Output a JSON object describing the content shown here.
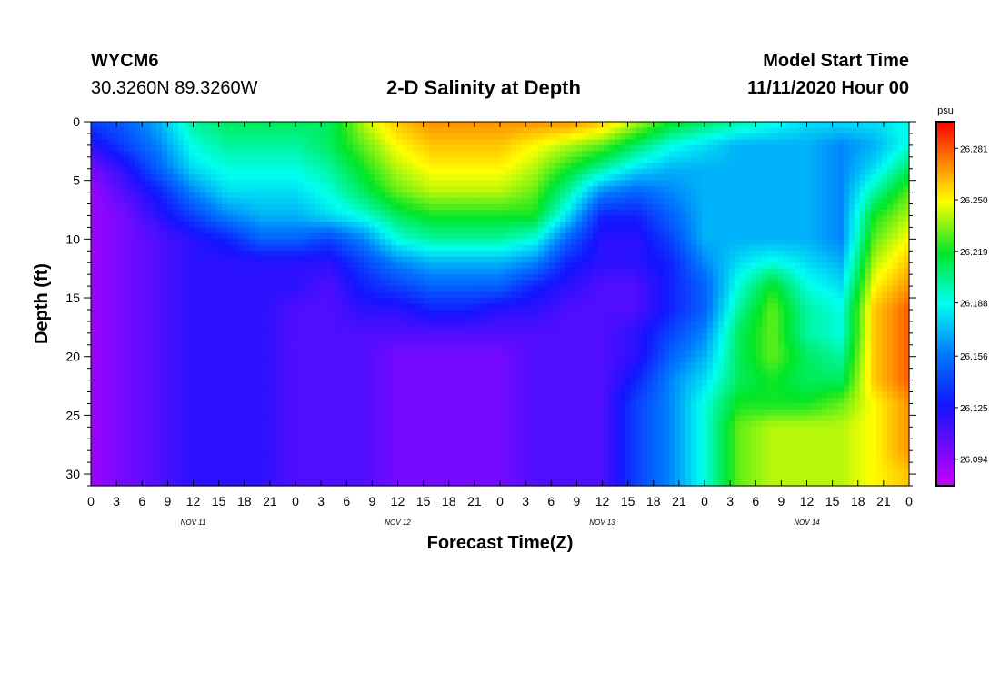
{
  "header": {
    "station_id": "WYCM6",
    "coords": "30.3260N 89.3260W",
    "title": "2-D Salinity at Depth",
    "start_label": "Model Start Time",
    "start_value": "11/11/2020 Hour 00"
  },
  "chart_data": {
    "type": "heatmap",
    "title": "2-D Salinity at Depth",
    "xlabel": "Forecast Time(Z)",
    "ylabel": "Depth (ft)",
    "x_hours_range": [
      0,
      96
    ],
    "x_tick_step_hours": 3,
    "x_tick_labels": [
      "0",
      "3",
      "6",
      "9",
      "12",
      "15",
      "18",
      "21",
      "0",
      "3",
      "6",
      "9",
      "12",
      "15",
      "18",
      "21",
      "0",
      "3",
      "6",
      "9",
      "12",
      "15",
      "18",
      "21",
      "0",
      "3",
      "6",
      "9",
      "12",
      "15",
      "18",
      "21",
      "0"
    ],
    "day_labels": [
      {
        "text": "NOV 11",
        "hour": 12
      },
      {
        "text": "NOV 12",
        "hour": 36
      },
      {
        "text": "NOV 13",
        "hour": 60
      },
      {
        "text": "NOV 14",
        "hour": 84
      }
    ],
    "y_range_ft": [
      0,
      31
    ],
    "y_ticks": [
      0,
      5,
      10,
      15,
      20,
      25,
      30
    ],
    "colorbar": {
      "unit": "psu",
      "min": 26.078,
      "max": 26.297,
      "tick_values": [
        26.094,
        26.125,
        26.156,
        26.188,
        26.219,
        26.25,
        26.281
      ],
      "tick_labels": [
        "26.094",
        "26.125",
        "26.156",
        "26.188",
        "26.219",
        "26.250",
        "26.281"
      ]
    },
    "time_hours": [
      0,
      4,
      8,
      12,
      16,
      20,
      24,
      28,
      32,
      36,
      40,
      44,
      48,
      52,
      56,
      60,
      64,
      68,
      72,
      76,
      80,
      84,
      88,
      92,
      96
    ],
    "depths_ft": [
      0,
      2,
      4,
      6,
      8,
      10,
      12,
      14,
      16,
      18,
      20,
      22,
      24,
      26,
      28,
      30,
      31
    ],
    "salinity_psu": [
      [
        26.14,
        26.15,
        26.17,
        26.2,
        26.21,
        26.21,
        26.21,
        26.21,
        26.24,
        26.26,
        26.27,
        26.27,
        26.27,
        26.27,
        26.27,
        26.26,
        26.24,
        26.22,
        26.21,
        26.2,
        26.19,
        26.18,
        26.18,
        26.18,
        26.19
      ],
      [
        26.12,
        26.14,
        26.16,
        26.19,
        26.2,
        26.2,
        26.2,
        26.21,
        26.23,
        26.25,
        26.26,
        26.26,
        26.26,
        26.25,
        26.24,
        26.23,
        26.21,
        26.19,
        26.18,
        26.17,
        26.17,
        26.17,
        26.16,
        26.17,
        26.19
      ],
      [
        26.1,
        26.12,
        26.15,
        26.18,
        26.19,
        26.19,
        26.19,
        26.2,
        26.22,
        26.24,
        26.25,
        26.25,
        26.25,
        26.24,
        26.22,
        26.2,
        26.18,
        26.17,
        26.17,
        26.17,
        26.17,
        26.17,
        26.16,
        26.18,
        26.21
      ],
      [
        26.09,
        26.11,
        26.13,
        26.16,
        26.18,
        26.18,
        26.18,
        26.19,
        26.21,
        26.23,
        26.24,
        26.24,
        26.24,
        26.23,
        26.2,
        26.16,
        26.15,
        26.16,
        26.17,
        26.17,
        26.17,
        26.17,
        26.16,
        26.2,
        26.23
      ],
      [
        26.09,
        26.1,
        26.12,
        26.14,
        26.16,
        26.17,
        26.17,
        26.18,
        26.19,
        26.21,
        26.22,
        26.22,
        26.22,
        26.22,
        26.18,
        26.13,
        26.13,
        26.15,
        26.17,
        26.17,
        26.17,
        26.17,
        26.16,
        26.22,
        26.24
      ],
      [
        26.09,
        26.1,
        26.11,
        26.12,
        26.13,
        26.15,
        26.15,
        26.14,
        26.16,
        26.19,
        26.2,
        26.2,
        26.2,
        26.19,
        26.15,
        26.12,
        26.12,
        26.14,
        26.17,
        26.17,
        26.17,
        26.17,
        26.16,
        26.23,
        26.25
      ],
      [
        26.09,
        26.1,
        26.11,
        26.12,
        26.12,
        26.12,
        26.12,
        26.12,
        26.14,
        26.16,
        26.17,
        26.17,
        26.17,
        26.16,
        26.13,
        26.12,
        26.12,
        26.13,
        26.16,
        26.18,
        26.19,
        26.18,
        26.17,
        26.24,
        26.26
      ],
      [
        26.09,
        26.1,
        26.11,
        26.12,
        26.12,
        26.12,
        26.12,
        26.11,
        26.13,
        26.14,
        26.15,
        26.15,
        26.15,
        26.13,
        26.12,
        26.11,
        26.11,
        26.13,
        26.15,
        26.19,
        26.22,
        26.19,
        26.18,
        26.25,
        26.27
      ],
      [
        26.09,
        26.1,
        26.11,
        26.12,
        26.12,
        26.12,
        26.11,
        26.11,
        26.12,
        26.12,
        26.13,
        26.13,
        26.12,
        26.12,
        26.11,
        26.11,
        26.11,
        26.13,
        26.15,
        26.2,
        26.23,
        26.2,
        26.19,
        26.26,
        26.28
      ],
      [
        26.09,
        26.1,
        26.11,
        26.12,
        26.12,
        26.12,
        26.11,
        26.11,
        26.11,
        26.11,
        26.11,
        26.11,
        26.11,
        26.11,
        26.11,
        26.11,
        26.12,
        26.14,
        26.16,
        26.21,
        26.23,
        26.2,
        26.19,
        26.26,
        26.28
      ],
      [
        26.09,
        26.1,
        26.11,
        26.12,
        26.12,
        26.12,
        26.11,
        26.11,
        26.11,
        26.1,
        26.1,
        26.1,
        26.1,
        26.11,
        26.11,
        26.11,
        26.12,
        26.15,
        26.17,
        26.21,
        26.23,
        26.21,
        26.2,
        26.26,
        26.28
      ],
      [
        26.09,
        26.1,
        26.11,
        26.12,
        26.12,
        26.12,
        26.11,
        26.11,
        26.11,
        26.1,
        26.1,
        26.1,
        26.1,
        26.11,
        26.11,
        26.11,
        26.13,
        26.16,
        26.18,
        26.21,
        26.22,
        26.21,
        26.21,
        26.26,
        26.28
      ],
      [
        26.09,
        26.1,
        26.11,
        26.12,
        26.12,
        26.12,
        26.11,
        26.11,
        26.11,
        26.1,
        26.1,
        26.1,
        26.1,
        26.11,
        26.11,
        26.11,
        26.14,
        26.16,
        26.19,
        26.22,
        26.22,
        26.22,
        26.23,
        26.25,
        26.27
      ],
      [
        26.09,
        26.1,
        26.11,
        26.12,
        26.12,
        26.12,
        26.11,
        26.11,
        26.11,
        26.1,
        26.1,
        26.1,
        26.1,
        26.11,
        26.11,
        26.11,
        26.14,
        26.16,
        26.19,
        26.23,
        26.24,
        26.24,
        26.24,
        26.25,
        26.27
      ],
      [
        26.09,
        26.1,
        26.11,
        26.12,
        26.12,
        26.12,
        26.11,
        26.11,
        26.11,
        26.1,
        26.1,
        26.1,
        26.1,
        26.11,
        26.11,
        26.11,
        26.14,
        26.16,
        26.19,
        26.23,
        26.24,
        26.24,
        26.24,
        26.25,
        26.27
      ],
      [
        26.09,
        26.1,
        26.11,
        26.12,
        26.12,
        26.12,
        26.11,
        26.11,
        26.11,
        26.1,
        26.1,
        26.1,
        26.1,
        26.11,
        26.11,
        26.11,
        26.14,
        26.16,
        26.19,
        26.23,
        26.24,
        26.24,
        26.24,
        26.25,
        26.26
      ],
      [
        26.09,
        26.1,
        26.11,
        26.12,
        26.12,
        26.12,
        26.11,
        26.11,
        26.11,
        26.1,
        26.1,
        26.1,
        26.1,
        26.11,
        26.11,
        26.11,
        26.14,
        26.16,
        26.19,
        26.23,
        26.24,
        26.24,
        26.24,
        26.25,
        26.26
      ]
    ]
  }
}
